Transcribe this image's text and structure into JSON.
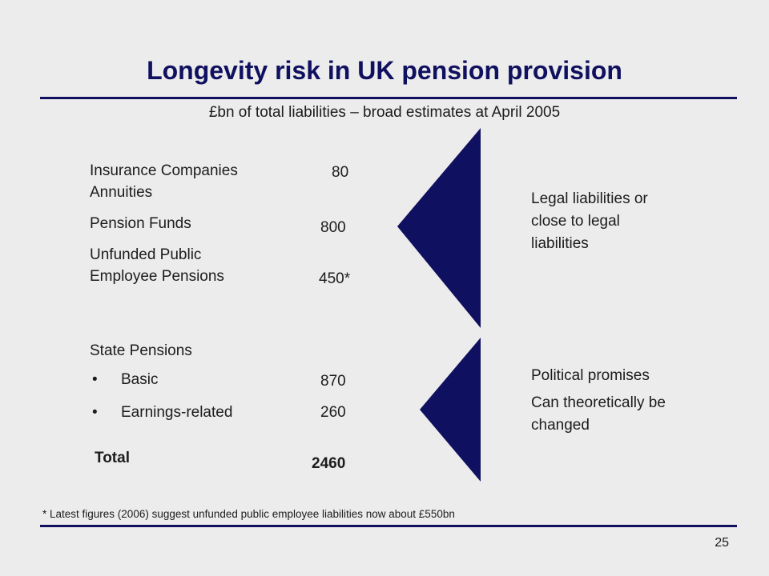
{
  "slide": {
    "title": "Longevity risk in UK pension provision",
    "subtitle": "£bn of total liabilities – broad estimates at April 2005",
    "page_number": "25",
    "footnote": "* Latest figures (2006) suggest unfunded public employee liabilities now about £550bn"
  },
  "table": {
    "insurance": {
      "label_line1": "Insurance Companies",
      "label_line2": "Annuities",
      "value": "80"
    },
    "pension_funds": {
      "label": "Pension Funds",
      "value": "800"
    },
    "unfunded": {
      "label_line1": "Unfunded Public",
      "label_line2": "Employee Pensions",
      "value": "450*"
    },
    "state": {
      "label": "State Pensions",
      "bullet": "•",
      "basic": {
        "label": "Basic",
        "value": "870"
      },
      "earnings": {
        "label": "Earnings-related",
        "value": "260"
      }
    },
    "total": {
      "label": "Total",
      "value": "2460"
    }
  },
  "groups": {
    "legal": {
      "line1": "Legal liabilities or",
      "line2": "close to legal",
      "line3": "liabilities"
    },
    "political": {
      "line1": "Political promises",
      "line2": "Can theoretically be",
      "line3": "changed"
    }
  },
  "colors": {
    "navy": "#101060",
    "background": "#ececec",
    "text": "#1c1c1c"
  }
}
